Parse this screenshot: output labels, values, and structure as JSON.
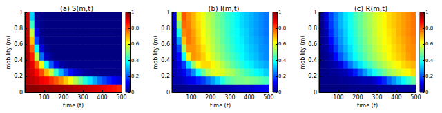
{
  "chart_data": [
    {
      "type": "heatmap",
      "title": "(a) S(m,t)",
      "xlabel": "time (t)",
      "ylabel": "mobility (m)",
      "xlim": [
        0,
        500
      ],
      "xticks": [
        100,
        200,
        300,
        400,
        500
      ],
      "ylim": [
        0,
        1
      ],
      "yticks": [
        0,
        0.2,
        0.4,
        0.6,
        0.8,
        1
      ],
      "colorbar": {
        "range": [
          0,
          1
        ],
        "ticks": [
          0,
          0.2,
          0.4,
          0.6,
          0.8,
          1
        ]
      },
      "x": [
        12.5,
        37.5,
        62.5,
        87.5,
        112.5,
        137.5,
        162.5,
        187.5,
        212.5,
        237.5,
        262.5,
        287.5,
        312.5,
        337.5,
        362.5,
        387.5,
        412.5,
        437.5,
        462.5,
        487.5
      ],
      "y": [
        0.05,
        0.15,
        0.25,
        0.35,
        0.45,
        0.55,
        0.65,
        0.75,
        0.85,
        0.95
      ],
      "cells": [
        [
          0.99,
          0.99,
          0.99,
          0.98,
          0.98,
          0.98,
          0.97,
          0.97,
          0.96,
          0.96,
          0.95,
          0.94,
          0.93,
          0.92,
          0.91,
          0.9,
          0.89,
          0.87,
          0.86,
          0.84
        ],
        [
          0.95,
          0.94,
          0.92,
          0.89,
          0.87,
          0.83,
          0.79,
          0.74,
          0.68,
          0.62,
          0.55,
          0.48,
          0.41,
          0.35,
          0.29,
          0.23,
          0.19,
          0.15,
          0.12,
          0.09
        ],
        [
          0.95,
          0.92,
          0.87,
          0.8,
          0.7,
          0.57,
          0.43,
          0.3,
          0.2,
          0.13,
          0.08,
          0.05,
          0.03,
          0.02,
          0.01,
          0.01,
          0.01,
          0.01,
          0.01,
          0.01
        ],
        [
          0.96,
          0.9,
          0.79,
          0.61,
          0.39,
          0.21,
          0.1,
          0.04,
          0.02,
          0.01,
          0.01,
          0.01,
          0.01,
          0.01,
          0.01,
          0.01,
          0.01,
          0.01,
          0.01,
          0.01
        ],
        [
          0.96,
          0.85,
          0.56,
          0.23,
          0.06,
          0.02,
          0,
          0,
          0,
          0,
          0,
          0,
          0,
          0,
          0,
          0,
          0,
          0,
          0,
          0
        ],
        [
          0.95,
          0.78,
          0.37,
          0.09,
          0.02,
          0,
          0,
          0,
          0,
          0,
          0,
          0,
          0,
          0,
          0,
          0,
          0,
          0,
          0,
          0
        ],
        [
          0.95,
          0.68,
          0.19,
          0.03,
          0,
          0,
          0,
          0,
          0,
          0,
          0,
          0,
          0,
          0,
          0,
          0,
          0,
          0,
          0,
          0
        ],
        [
          0.94,
          0.56,
          0.1,
          0.01,
          0,
          0,
          0,
          0,
          0,
          0,
          0,
          0,
          0,
          0,
          0,
          0,
          0,
          0,
          0,
          0
        ],
        [
          0.92,
          0.43,
          0.05,
          0.01,
          0,
          0,
          0,
          0,
          0,
          0,
          0,
          0,
          0,
          0,
          0,
          0,
          0,
          0,
          0,
          0
        ],
        [
          0.92,
          0.33,
          0.02,
          0.01,
          0,
          0,
          0,
          0,
          0,
          0,
          0,
          0,
          0,
          0,
          0,
          0,
          0,
          0,
          0,
          0
        ]
      ]
    },
    {
      "type": "heatmap",
      "title": "(b) I(m,t)",
      "xlabel": "time (t)",
      "ylabel": "mobility (m)",
      "xlim": [
        0,
        500
      ],
      "xticks": [
        100,
        200,
        300,
        400,
        500
      ],
      "ylim": [
        0,
        1
      ],
      "yticks": [
        0,
        0.2,
        0.4,
        0.6,
        0.8,
        1
      ],
      "colorbar": {
        "range": [
          0,
          1
        ],
        "ticks": [
          0,
          0.2,
          0.4,
          0.6,
          0.8,
          1
        ]
      },
      "x": [
        12.5,
        37.5,
        62.5,
        87.5,
        112.5,
        137.5,
        162.5,
        187.5,
        212.5,
        237.5,
        262.5,
        287.5,
        312.5,
        337.5,
        362.5,
        387.5,
        412.5,
        437.5,
        462.5,
        487.5
      ],
      "y": [
        0.05,
        0.15,
        0.25,
        0.35,
        0.45,
        0.55,
        0.65,
        0.75,
        0.85,
        0.95
      ],
      "cells": [
        [
          0.01,
          0.01,
          0.01,
          0.02,
          0.02,
          0.02,
          0.02,
          0.02,
          0.03,
          0.03,
          0.04,
          0.05,
          0.05,
          0.06,
          0.07,
          0.08,
          0.08,
          0.1,
          0.11,
          0.12
        ],
        [
          0.04,
          0.05,
          0.07,
          0.1,
          0.11,
          0.15,
          0.18,
          0.23,
          0.28,
          0.33,
          0.4,
          0.45,
          0.47,
          0.49,
          0.49,
          0.5,
          0.49,
          0.48,
          0.46,
          0.44
        ],
        [
          0.04,
          0.07,
          0.11,
          0.18,
          0.26,
          0.38,
          0.48,
          0.55,
          0.59,
          0.6,
          0.59,
          0.56,
          0.54,
          0.5,
          0.47,
          0.44,
          0.41,
          0.38,
          0.36,
          0.33
        ],
        [
          0.04,
          0.09,
          0.18,
          0.34,
          0.52,
          0.62,
          0.66,
          0.66,
          0.63,
          0.59,
          0.55,
          0.51,
          0.47,
          0.44,
          0.41,
          0.38,
          0.36,
          0.33,
          0.31,
          0.29
        ],
        [
          0.04,
          0.13,
          0.39,
          0.64,
          0.73,
          0.71,
          0.67,
          0.62,
          0.58,
          0.54,
          0.5,
          0.47,
          0.44,
          0.41,
          0.38,
          0.35,
          0.33,
          0.31,
          0.28,
          0.26
        ],
        [
          0.04,
          0.19,
          0.54,
          0.73,
          0.73,
          0.7,
          0.65,
          0.6,
          0.56,
          0.52,
          0.49,
          0.45,
          0.42,
          0.39,
          0.37,
          0.34,
          0.32,
          0.3,
          0.27,
          0.26
        ],
        [
          0.04,
          0.28,
          0.68,
          0.76,
          0.73,
          0.68,
          0.63,
          0.59,
          0.55,
          0.51,
          0.47,
          0.44,
          0.41,
          0.38,
          0.36,
          0.33,
          0.31,
          0.29,
          0.27,
          0.25
        ],
        [
          0.05,
          0.39,
          0.74,
          0.76,
          0.72,
          0.67,
          0.62,
          0.58,
          0.54,
          0.5,
          0.47,
          0.43,
          0.4,
          0.38,
          0.35,
          0.33,
          0.3,
          0.28,
          0.26,
          0.24
        ],
        [
          0.07,
          0.5,
          0.77,
          0.75,
          0.7,
          0.66,
          0.61,
          0.57,
          0.53,
          0.49,
          0.46,
          0.43,
          0.4,
          0.37,
          0.34,
          0.32,
          0.3,
          0.28,
          0.26,
          0.24
        ],
        [
          0.07,
          0.58,
          0.79,
          0.74,
          0.7,
          0.65,
          0.61,
          0.56,
          0.53,
          0.49,
          0.46,
          0.42,
          0.4,
          0.37,
          0.34,
          0.32,
          0.3,
          0.28,
          0.26,
          0.24
        ]
      ]
    },
    {
      "type": "heatmap",
      "title": "(c) R(m,t)",
      "xlabel": "time (t)",
      "ylabel": "mobility (m)",
      "xlim": [
        0,
        500
      ],
      "xticks": [
        100,
        200,
        300,
        400,
        500
      ],
      "ylim": [
        0,
        1
      ],
      "yticks": [
        0,
        0.2,
        0.4,
        0.6,
        0.8,
        1
      ],
      "colorbar": {
        "range": [
          0,
          1
        ],
        "ticks": [
          0,
          0.2,
          0.4,
          0.6,
          0.8,
          1
        ]
      },
      "x": [
        12.5,
        37.5,
        62.5,
        87.5,
        112.5,
        137.5,
        162.5,
        187.5,
        212.5,
        237.5,
        262.5,
        287.5,
        312.5,
        337.5,
        362.5,
        387.5,
        412.5,
        437.5,
        462.5,
        487.5
      ],
      "y": [
        0.05,
        0.15,
        0.25,
        0.35,
        0.45,
        0.55,
        0.65,
        0.75,
        0.85,
        0.95
      ],
      "cells": [
        [
          0,
          0,
          0,
          0,
          0,
          0,
          0.01,
          0.01,
          0.01,
          0.01,
          0.01,
          0.01,
          0.02,
          0.02,
          0.02,
          0.02,
          0.03,
          0.03,
          0.03,
          0.04
        ],
        [
          0.01,
          0.01,
          0.01,
          0.01,
          0.02,
          0.02,
          0.03,
          0.03,
          0.04,
          0.05,
          0.05,
          0.07,
          0.12,
          0.16,
          0.22,
          0.27,
          0.32,
          0.37,
          0.42,
          0.47
        ],
        [
          0.01,
          0.01,
          0.02,
          0.02,
          0.04,
          0.05,
          0.09,
          0.15,
          0.21,
          0.27,
          0.33,
          0.39,
          0.43,
          0.48,
          0.52,
          0.55,
          0.58,
          0.61,
          0.63,
          0.66
        ],
        [
          0,
          0.01,
          0.03,
          0.05,
          0.09,
          0.17,
          0.24,
          0.3,
          0.35,
          0.4,
          0.44,
          0.48,
          0.52,
          0.55,
          0.58,
          0.61,
          0.63,
          0.66,
          0.68,
          0.7
        ],
        [
          0,
          0.02,
          0.05,
          0.13,
          0.21,
          0.27,
          0.33,
          0.38,
          0.42,
          0.46,
          0.5,
          0.53,
          0.56,
          0.59,
          0.62,
          0.65,
          0.67,
          0.69,
          0.72,
          0.74
        ],
        [
          0.01,
          0.03,
          0.09,
          0.18,
          0.25,
          0.3,
          0.35,
          0.4,
          0.44,
          0.48,
          0.51,
          0.55,
          0.58,
          0.61,
          0.63,
          0.66,
          0.68,
          0.7,
          0.73,
          0.74
        ],
        [
          0.01,
          0.04,
          0.13,
          0.21,
          0.27,
          0.32,
          0.37,
          0.41,
          0.45,
          0.49,
          0.53,
          0.56,
          0.59,
          0.62,
          0.64,
          0.67,
          0.69,
          0.71,
          0.73,
          0.75
        ],
        [
          0.01,
          0.05,
          0.16,
          0.23,
          0.28,
          0.33,
          0.38,
          0.42,
          0.46,
          0.5,
          0.53,
          0.57,
          0.6,
          0.62,
          0.65,
          0.67,
          0.7,
          0.72,
          0.74,
          0.76
        ],
        [
          0.01,
          0.07,
          0.18,
          0.24,
          0.3,
          0.34,
          0.39,
          0.43,
          0.47,
          0.51,
          0.54,
          0.57,
          0.6,
          0.63,
          0.66,
          0.68,
          0.7,
          0.72,
          0.74,
          0.76
        ],
        [
          0.01,
          0.09,
          0.19,
          0.25,
          0.3,
          0.35,
          0.39,
          0.44,
          0.47,
          0.51,
          0.54,
          0.58,
          0.6,
          0.63,
          0.66,
          0.68,
          0.7,
          0.72,
          0.74,
          0.76
        ]
      ]
    }
  ]
}
